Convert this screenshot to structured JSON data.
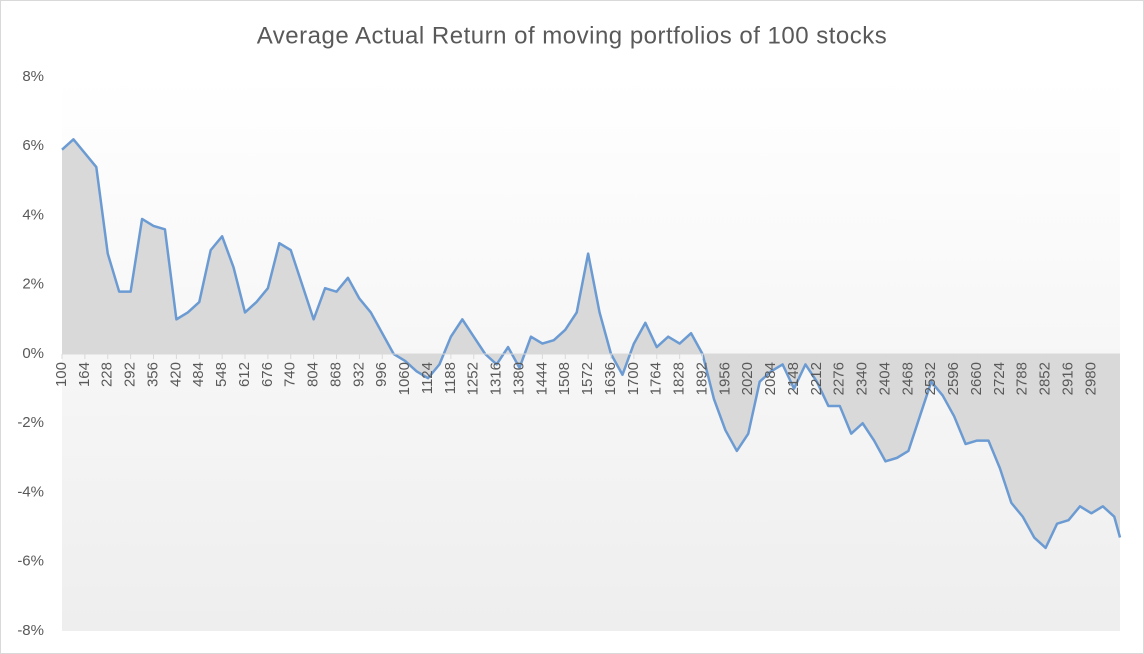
{
  "chart_data": {
    "type": "line",
    "title": "Average Actual Return of moving portfolios of 100 stocks",
    "x": [
      100,
      132,
      164,
      196,
      228,
      260,
      292,
      324,
      356,
      388,
      420,
      452,
      484,
      516,
      548,
      580,
      612,
      644,
      676,
      708,
      740,
      772,
      804,
      836,
      868,
      900,
      932,
      964,
      996,
      1028,
      1060,
      1092,
      1124,
      1156,
      1188,
      1220,
      1252,
      1284,
      1316,
      1348,
      1380,
      1412,
      1444,
      1476,
      1508,
      1540,
      1572,
      1604,
      1636,
      1668,
      1700,
      1732,
      1764,
      1796,
      1828,
      1860,
      1892,
      1924,
      1956,
      1988,
      2020,
      2052,
      2084,
      2116,
      2148,
      2180,
      2212,
      2244,
      2276,
      2308,
      2340,
      2372,
      2404,
      2436,
      2468,
      2500,
      2532,
      2564,
      2596,
      2628,
      2660,
      2692,
      2724,
      2756,
      2788,
      2820,
      2852,
      2884,
      2916,
      2948,
      2980,
      3012,
      3044,
      3060
    ],
    "series": [
      {
        "name": "Average Actual Return",
        "color": "#6b9bd2",
        "area_color": "#d9d9d9",
        "values": [
          5.9,
          6.2,
          5.8,
          5.4,
          2.9,
          1.8,
          1.8,
          3.9,
          3.7,
          3.6,
          1.0,
          1.2,
          1.5,
          3.0,
          3.4,
          2.5,
          1.2,
          1.5,
          1.9,
          3.2,
          3.0,
          2.0,
          1.0,
          1.9,
          1.8,
          2.2,
          1.6,
          1.2,
          0.6,
          0.0,
          -0.2,
          -0.5,
          -0.7,
          -0.3,
          0.5,
          1.0,
          0.5,
          0.0,
          -0.3,
          0.2,
          -0.4,
          0.5,
          0.3,
          0.4,
          0.7,
          1.2,
          2.9,
          1.2,
          0.0,
          -0.6,
          0.3,
          0.9,
          0.2,
          0.5,
          0.3,
          0.6,
          0.0,
          -1.3,
          -2.2,
          -2.8,
          -2.3,
          -0.8,
          -0.5,
          -0.3,
          -1.0,
          -0.3,
          -0.8,
          -1.5,
          -1.5,
          -2.3,
          -2.0,
          -2.5,
          -3.1,
          -3.0,
          -2.8,
          -1.8,
          -0.8,
          -1.2,
          -1.8,
          -2.6,
          -2.5,
          -2.5,
          -3.3,
          -4.3,
          -4.7,
          -5.3,
          -5.6,
          -4.9,
          -4.8,
          -4.4,
          -4.6,
          -4.4,
          -4.7,
          -5.3
        ]
      }
    ],
    "area": true,
    "xlim": [
      100,
      3060
    ],
    "xticks": [
      100,
      164,
      228,
      292,
      356,
      420,
      484,
      548,
      612,
      676,
      740,
      804,
      868,
      932,
      996,
      1060,
      1124,
      1188,
      1252,
      1316,
      1380,
      1444,
      1508,
      1572,
      1636,
      1700,
      1764,
      1828,
      1892,
      1956,
      2020,
      2084,
      2148,
      2212,
      2276,
      2340,
      2404,
      2468,
      2532,
      2596,
      2660,
      2724,
      2788,
      2852,
      2916,
      2980
    ],
    "ylim": [
      -8,
      8
    ],
    "yticks": [
      {
        "value": -8,
        "label": "-8%"
      },
      {
        "value": -6,
        "label": "-6%"
      },
      {
        "value": -4,
        "label": "-4%"
      },
      {
        "value": -2,
        "label": "-2%"
      },
      {
        "value": 0,
        "label": "0%"
      },
      {
        "value": 2,
        "label": "2%"
      },
      {
        "value": 4,
        "label": "4%"
      },
      {
        "value": 6,
        "label": "6%"
      },
      {
        "value": 8,
        "label": "8%"
      }
    ],
    "grid": false
  }
}
